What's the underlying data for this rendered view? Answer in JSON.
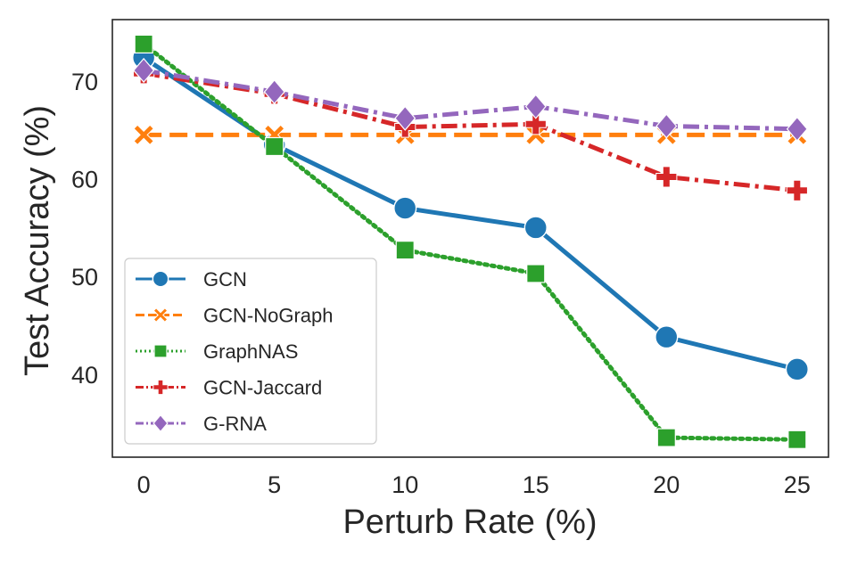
{
  "chart_data": {
    "type": "line",
    "title": "",
    "xlabel": "Perturb Rate (%)",
    "ylabel": "Test Accuracy (%)",
    "x": [
      0,
      5,
      10,
      15,
      20,
      25
    ],
    "xticks": [
      "0",
      "5",
      "10",
      "15",
      "20",
      "25"
    ],
    "yticks": [
      "40",
      "50",
      "60",
      "70"
    ],
    "xlim": [
      -1.2,
      26.2
    ],
    "ylim": [
      31.5,
      76.3
    ],
    "grid": false,
    "legend": "lower-left",
    "series": [
      {
        "name": "GCN",
        "values": [
          72.4,
          63.5,
          57.0,
          55.0,
          43.8,
          40.5
        ],
        "color": "#1f77b4",
        "marker": "circle",
        "dash": "solid"
      },
      {
        "name": "GCN-NoGraph",
        "values": [
          64.5,
          64.5,
          64.5,
          64.5,
          64.5,
          64.5
        ],
        "color": "#ff7f0e",
        "marker": "x",
        "dash": "dashed"
      },
      {
        "name": "GraphNAS",
        "values": [
          73.8,
          63.3,
          52.7,
          50.3,
          33.5,
          33.3
        ],
        "color": "#2ca02c",
        "marker": "square",
        "dash": "dotted"
      },
      {
        "name": "GCN-Jaccard",
        "values": [
          70.8,
          68.7,
          65.3,
          65.6,
          60.2,
          58.8
        ],
        "color": "#d62728",
        "marker": "plus",
        "dash": "dashdot"
      },
      {
        "name": "G-RNA",
        "values": [
          71.1,
          68.9,
          66.2,
          67.4,
          65.4,
          65.1
        ],
        "color": "#9467bd",
        "marker": "diamond",
        "dash": "dashdot"
      }
    ]
  }
}
